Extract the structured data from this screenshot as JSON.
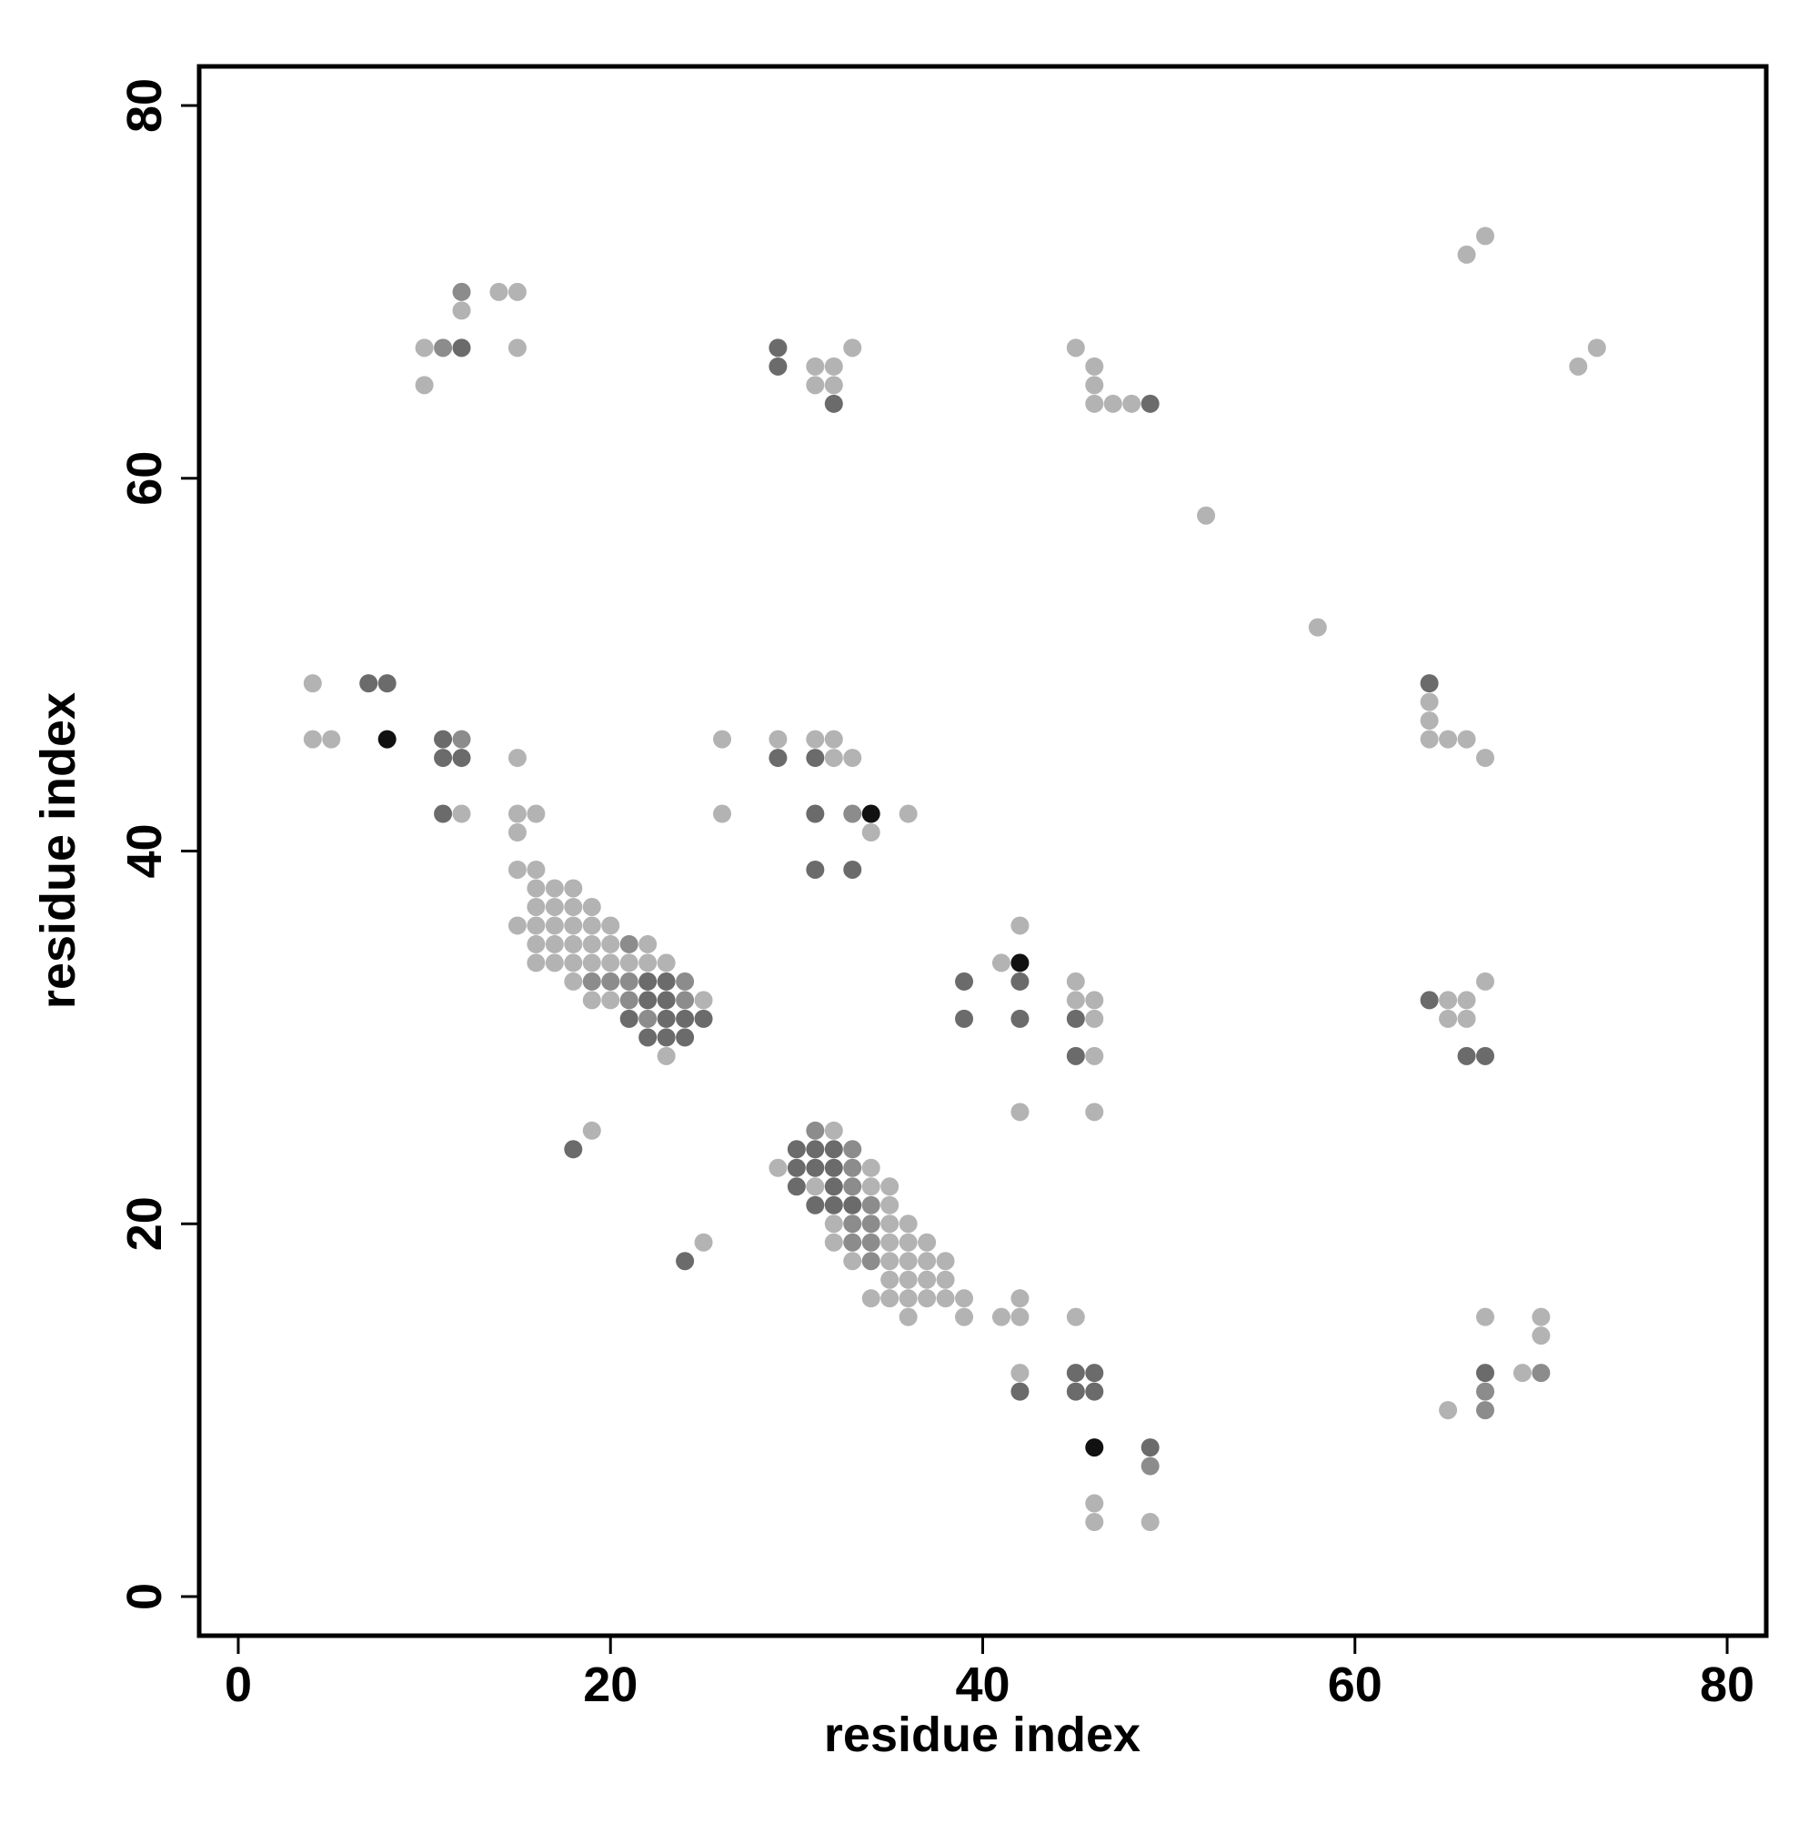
{
  "chart_data": {
    "type": "scatter",
    "xlabel": "residue index",
    "ylabel": "residue index",
    "xlim": [
      -2.1,
      82.1
    ],
    "ylim": [
      -2.1,
      82.1
    ],
    "xticks": [
      0,
      20,
      40,
      60,
      80
    ],
    "yticks": [
      0,
      20,
      40,
      60,
      80
    ],
    "series": [
      {
        "color": "#b3b3b3",
        "x": [
          67,
          66,
          14,
          15,
          12,
          10,
          15,
          33,
          45,
          73,
          31,
          32,
          46,
          72,
          10,
          31,
          32,
          46,
          46,
          47,
          48,
          52,
          58,
          4,
          64,
          64,
          4,
          5,
          26,
          29,
          31,
          32,
          64,
          65,
          66,
          15,
          32,
          33,
          67,
          12,
          15,
          16,
          26,
          36,
          15,
          34,
          15,
          16,
          16,
          17,
          18,
          16,
          17,
          18,
          19,
          15,
          16,
          17,
          18,
          19,
          20,
          42,
          16,
          17,
          18,
          19,
          20,
          22,
          16,
          17,
          18,
          19,
          20,
          21,
          22,
          23,
          41,
          18,
          45,
          67,
          19,
          20,
          25,
          45,
          46,
          65,
          66,
          46,
          65,
          66,
          23,
          46,
          42,
          46,
          19,
          32,
          29,
          34,
          31,
          34,
          35,
          35,
          32,
          35,
          36,
          25,
          32,
          35,
          36,
          37,
          33,
          35,
          36,
          37,
          38,
          35,
          36,
          37,
          38,
          34,
          35,
          36,
          37,
          38,
          39,
          42,
          36,
          39,
          41,
          42,
          45,
          67,
          70,
          70,
          42,
          69,
          65,
          46,
          46,
          49
        ],
        "y": [
          73,
          72,
          70,
          70,
          69,
          67,
          67,
          67,
          67,
          67,
          66,
          66,
          66,
          66,
          65,
          65,
          65,
          65,
          64,
          64,
          64,
          58,
          52,
          49,
          48,
          47,
          46,
          46,
          46,
          46,
          46,
          46,
          46,
          46,
          46,
          45,
          45,
          45,
          45,
          42,
          42,
          42,
          42,
          42,
          41,
          41,
          39,
          39,
          38,
          38,
          38,
          37,
          37,
          37,
          37,
          36,
          36,
          36,
          36,
          36,
          36,
          36,
          35,
          35,
          35,
          35,
          35,
          35,
          34,
          34,
          34,
          34,
          34,
          34,
          34,
          34,
          34,
          33,
          33,
          33,
          32,
          32,
          32,
          32,
          32,
          32,
          32,
          31,
          31,
          31,
          29,
          29,
          26,
          26,
          25,
          25,
          23,
          23,
          22,
          22,
          22,
          21,
          20,
          20,
          20,
          19,
          19,
          19,
          19,
          19,
          18,
          18,
          18,
          18,
          18,
          17,
          17,
          17,
          17,
          16,
          16,
          16,
          16,
          16,
          16,
          16,
          15,
          15,
          15,
          15,
          15,
          15,
          15,
          14,
          12,
          12,
          10,
          5,
          4,
          4
        ]
      },
      {
        "color": "#8c8c8c",
        "x": [
          12,
          11,
          12,
          33,
          21,
          19,
          20,
          21,
          24,
          21,
          24,
          22,
          31,
          33,
          33,
          33,
          34,
          33,
          34,
          33,
          34,
          34,
          70,
          67,
          67,
          49
        ],
        "y": [
          70,
          67,
          46,
          42,
          35,
          33,
          33,
          33,
          33,
          32,
          32,
          31,
          25,
          24,
          23,
          22,
          21,
          20,
          20,
          19,
          19,
          18,
          12,
          11,
          10,
          7
        ]
      },
      {
        "color": "#6b6b6b",
        "x": [
          12,
          29,
          29,
          32,
          49,
          7,
          8,
          64,
          11,
          11,
          12,
          29,
          31,
          11,
          31,
          31,
          33,
          22,
          23,
          39,
          42,
          22,
          23,
          64,
          21,
          23,
          24,
          25,
          39,
          42,
          45,
          22,
          23,
          24,
          45,
          66,
          67,
          18,
          30,
          31,
          32,
          30,
          31,
          32,
          30,
          32,
          31,
          32,
          33,
          24,
          45,
          46,
          67,
          42,
          45,
          46,
          49
        ],
        "y": [
          67,
          67,
          66,
          64,
          64,
          49,
          49,
          49,
          46,
          45,
          45,
          45,
          45,
          42,
          42,
          39,
          39,
          33,
          33,
          33,
          33,
          32,
          32,
          32,
          31,
          31,
          31,
          31,
          31,
          31,
          31,
          30,
          30,
          30,
          29,
          29,
          29,
          24,
          24,
          24,
          24,
          23,
          23,
          23,
          22,
          22,
          21,
          21,
          21,
          18,
          12,
          12,
          12,
          11,
          11,
          11,
          8
        ]
      },
      {
        "color": "#111111",
        "x": [
          8,
          34,
          42,
          46
        ],
        "y": [
          46,
          42,
          34,
          8
        ]
      }
    ]
  }
}
